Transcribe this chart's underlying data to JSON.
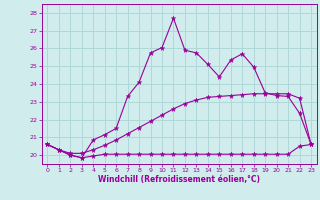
{
  "xlabel": "Windchill (Refroidissement éolien,°C)",
  "x": [
    0,
    1,
    2,
    3,
    4,
    5,
    6,
    7,
    8,
    9,
    10,
    11,
    12,
    13,
    14,
    15,
    16,
    17,
    18,
    19,
    20,
    21,
    22,
    23
  ],
  "line1": [
    20.6,
    20.3,
    20.0,
    19.85,
    20.85,
    21.15,
    21.5,
    23.3,
    24.1,
    25.75,
    26.05,
    27.7,
    25.9,
    25.75,
    25.1,
    24.4,
    25.35,
    25.7,
    24.95,
    23.5,
    23.35,
    23.3,
    22.35,
    20.6
  ],
  "line2": [
    20.6,
    20.3,
    20.0,
    19.85,
    19.95,
    20.05,
    20.05,
    20.05,
    20.05,
    20.05,
    20.05,
    20.05,
    20.05,
    20.05,
    20.05,
    20.05,
    20.05,
    20.05,
    20.05,
    20.05,
    20.05,
    20.05,
    20.5,
    20.6
  ],
  "line3": [
    20.6,
    20.3,
    20.1,
    20.1,
    20.3,
    20.55,
    20.85,
    21.2,
    21.55,
    21.9,
    22.25,
    22.6,
    22.9,
    23.1,
    23.25,
    23.3,
    23.35,
    23.4,
    23.45,
    23.45,
    23.45,
    23.45,
    23.2,
    20.6
  ],
  "line_color": "#990099",
  "bg_color": "#d0ecec",
  "grid_color": "#b0d8d8",
  "ylim": [
    19.5,
    28.5
  ],
  "xlim": [
    -0.5,
    23.5
  ],
  "yticks": [
    20,
    21,
    22,
    23,
    24,
    25,
    26,
    27,
    28
  ],
  "xticks": [
    0,
    1,
    2,
    3,
    4,
    5,
    6,
    7,
    8,
    9,
    10,
    11,
    12,
    13,
    14,
    15,
    16,
    17,
    18,
    19,
    20,
    21,
    22,
    23
  ]
}
